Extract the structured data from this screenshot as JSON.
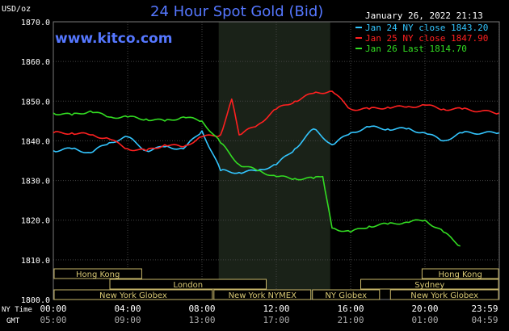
{
  "chart_data": {
    "type": "line",
    "title": "24 Hour Spot Gold (Bid)",
    "watermark": "www.kitco.com",
    "unit_label": "USD/oz",
    "timestamp": "January 26, 2022 21:13",
    "ylim": [
      1800,
      1870
    ],
    "y_ticks": [
      "1870.0",
      "1860.0",
      "1850.0",
      "1840.0",
      "1830.0",
      "1820.0",
      "1810.0",
      "1800.0"
    ],
    "x_axis": {
      "ny_time_label": "NY Time",
      "gmt_label": "GMT",
      "ny_ticks": [
        "00:00",
        "04:00",
        "08:00",
        "12:00",
        "16:00",
        "20:00",
        "23:59"
      ],
      "gmt_ticks": [
        "05:00",
        "09:00",
        "13:00",
        "17:00",
        "21:00",
        "01:00",
        "04:59"
      ],
      "xlim_hours": [
        0,
        24
      ]
    },
    "grid": true,
    "highlight_hours": [
      8.9,
      14.9
    ],
    "legend_position": "top-right",
    "series": [
      {
        "name": "Jan 24 NY close 1843.20",
        "color": "#33c6ff",
        "x": [
          0,
          1,
          2,
          3,
          4,
          5,
          6,
          7,
          8,
          9,
          10,
          11,
          12,
          13,
          14,
          15,
          16,
          17,
          18,
          19,
          20,
          21,
          22,
          23.99
        ],
        "y": [
          1837.5,
          1838,
          1837,
          1839.5,
          1841,
          1837.5,
          1838.5,
          1838,
          1842.5,
          1832.5,
          1832,
          1832.5,
          1834,
          1838,
          1843,
          1839,
          1842,
          1843.5,
          1843,
          1843,
          1842,
          1840,
          1842,
          1842
        ]
      },
      {
        "name": "Jan 25 NY close 1847.90",
        "color": "#ff2020",
        "x": [
          0,
          1,
          2,
          3,
          4,
          5,
          6,
          7,
          8,
          9,
          9.6,
          10,
          11,
          12,
          13,
          14,
          15,
          16,
          17,
          18,
          19,
          20,
          21,
          22,
          23.99
        ],
        "y": [
          1842,
          1842,
          1841.5,
          1840.5,
          1838,
          1837.5,
          1839,
          1838.5,
          1841,
          1841.5,
          1850.5,
          1841.5,
          1844,
          1848,
          1850,
          1852,
          1852.5,
          1848,
          1848,
          1848.5,
          1848.5,
          1849,
          1848,
          1848,
          1847
        ]
      },
      {
        "name": "Jan 26 Last 1814.70",
        "color": "#33dd22",
        "x": [
          0,
          1,
          2,
          3,
          4,
          5,
          6,
          7,
          8,
          9,
          10,
          11,
          12,
          13,
          14,
          14.5,
          15,
          16,
          17,
          18,
          19,
          20,
          21,
          21.9
        ],
        "y": [
          1847,
          1846.5,
          1847.5,
          1846,
          1846,
          1845.5,
          1845,
          1846,
          1845,
          1839.5,
          1834,
          1832.5,
          1831,
          1830.5,
          1830.5,
          1831,
          1818,
          1817,
          1818.5,
          1819,
          1819.5,
          1820,
          1817,
          1813.5
        ]
      }
    ],
    "sessions": [
      {
        "name": "Hong Kong",
        "start": 0,
        "end": 4.8,
        "row": 0
      },
      {
        "name": "Hong Kong",
        "start": 19.8,
        "end": 24,
        "row": 0
      },
      {
        "name": "London",
        "start": 3,
        "end": 11.5,
        "row": 1
      },
      {
        "name": "Sydney",
        "start": 16.5,
        "end": 24,
        "row": 1
      },
      {
        "name": "New York Globex",
        "start": 0,
        "end": 8.6,
        "row": 2
      },
      {
        "name": "New York NYMEX",
        "start": 8.6,
        "end": 13.9,
        "row": 2
      },
      {
        "name": "NY Globex",
        "start": 13.9,
        "end": 17.6,
        "row": 2
      },
      {
        "name": "New York Globex",
        "start": 18.1,
        "end": 24,
        "row": 2
      }
    ]
  },
  "colors": {
    "background": "#000000",
    "grid": "#444444",
    "highlight": "#1a2218",
    "title": "#5577ff",
    "watermark": "#5577ff",
    "axis_text": "#ffffff",
    "session_fill": "#000000",
    "session_border": "#c9b76a",
    "session_text": "#d8c874"
  }
}
